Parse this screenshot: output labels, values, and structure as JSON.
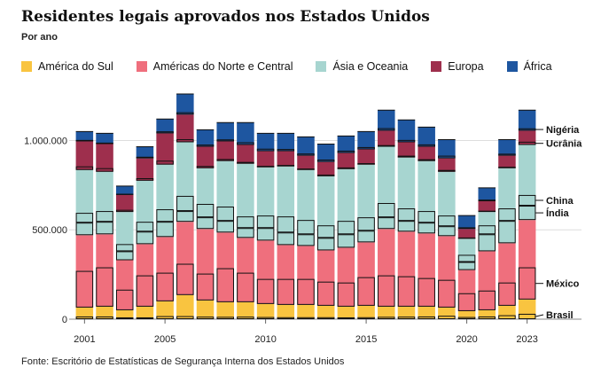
{
  "title": "Residentes legais aprovados nos Estados Unidos",
  "subtitle": "Por ano",
  "source": "Fonte: Escritório de Estatísticas de Segurança Interna dos Estados Unidos",
  "chart_data": {
    "type": "bar",
    "stacked": true,
    "title": "Residentes legais aprovados nos Estados Unidos",
    "subtitle": "Por ano",
    "ylim": [
      0,
      1300000
    ],
    "yticks": [
      0,
      500000,
      1000000
    ],
    "ytick_labels": [
      "0",
      "500.000",
      "1.000.000"
    ],
    "categories": [
      "2001",
      "2002",
      "2003",
      "2004",
      "2005",
      "2006",
      "2007",
      "2008",
      "2009",
      "2010",
      "2011",
      "2012",
      "2013",
      "2014",
      "2015",
      "2016",
      "2017",
      "2018",
      "2019",
      "2020",
      "2021",
      "2022",
      "2023"
    ],
    "xtick_labels": [
      "2001",
      "2005",
      "2010",
      "2015",
      "2020",
      "2023"
    ],
    "series": [
      {
        "name": "América do Sul",
        "color": "#f9c440",
        "values": [
          65000,
          70000,
          50000,
          70000,
          100000,
          135000,
          105000,
          95000,
          95000,
          85000,
          80000,
          80000,
          75000,
          70000,
          75000,
          70000,
          70000,
          70000,
          65000,
          45000,
          50000,
          75000,
          110000
        ]
      },
      {
        "name": "Américas do Norte e Central",
        "color": "#ef6f7d",
        "values": [
          405000,
          405000,
          280000,
          350000,
          360000,
          410000,
          400000,
          390000,
          360000,
          355000,
          335000,
          330000,
          310000,
          330000,
          355000,
          435000,
          420000,
          410000,
          400000,
          230000,
          330000,
          350000,
          445000
        ]
      },
      {
        "name": "Ásia e Oceania",
        "color": "#a7d5d0",
        "values": [
          365000,
          350000,
          270000,
          355000,
          405000,
          445000,
          340000,
          400000,
          415000,
          410000,
          440000,
          425000,
          415000,
          440000,
          435000,
          460000,
          415000,
          405000,
          360000,
          175000,
          220000,
          420000,
          420000
        ]
      },
      {
        "name": "Europa",
        "color": "#9e2f4d",
        "values": [
          160000,
          155000,
          95000,
          125000,
          175000,
          155000,
          120000,
          110000,
          105000,
          90000,
          85000,
          80000,
          80000,
          90000,
          85000,
          90000,
          85000,
          80000,
          75000,
          55000,
          60000,
          70000,
          80000
        ]
      },
      {
        "name": "África",
        "color": "#1e56a0",
        "values": [
          55000,
          60000,
          50000,
          65000,
          80000,
          115000,
          95000,
          105000,
          125000,
          100000,
          100000,
          105000,
          100000,
          95000,
          100000,
          115000,
          125000,
          110000,
          105000,
          75000,
          75000,
          90000,
          115000
        ]
      }
    ],
    "countries": [
      {
        "name": "Brasil",
        "series": "América do Sul",
        "values": [
          15000,
          15000,
          10000,
          10000,
          17000,
          17000,
          14000,
          13000,
          14000,
          12000,
          11000,
          11000,
          11000,
          10000,
          11000,
          13000,
          14000,
          15000,
          19000,
          12000,
          15000,
          22000,
          30000
        ]
      },
      {
        "name": "México",
        "series": "Américas do Norte e Central",
        "values": [
          205000,
          220000,
          115000,
          175000,
          160000,
          175000,
          150000,
          190000,
          165000,
          140000,
          145000,
          145000,
          135000,
          135000,
          160000,
          175000,
          170000,
          160000,
          155000,
          100000,
          110000,
          130000,
          180000
        ]
      },
      {
        "name": "Índia",
        "series": "Ásia e Oceania",
        "values": [
          70000,
          70000,
          50000,
          70000,
          85000,
          60000,
          65000,
          65000,
          55000,
          70000,
          70000,
          65000,
          70000,
          75000,
          65000,
          65000,
          60000,
          60000,
          55000,
          45000,
          95000,
          125000,
          80000
        ]
      },
      {
        "name": "China",
        "series": "Ásia e Oceania",
        "values": [
          55000,
          60000,
          40000,
          55000,
          70000,
          85000,
          75000,
          80000,
          65000,
          70000,
          90000,
          80000,
          70000,
          75000,
          75000,
          80000,
          70000,
          65000,
          60000,
          40000,
          50000,
          70000,
          60000
        ]
      },
      {
        "name": "Ucrânia",
        "series": "Europa",
        "values": [
          20000,
          20000,
          12000,
          14000,
          22000,
          17000,
          12000,
          11000,
          10000,
          8000,
          8000,
          8000,
          9000,
          9000,
          8000,
          9000,
          10000,
          10000,
          10000,
          7000,
          7000,
          8000,
          18000
        ]
      },
      {
        "name": "Nigéria",
        "series": "África",
        "values": [
          8000,
          8000,
          7000,
          9000,
          11000,
          13000,
          12000,
          11000,
          15000,
          14000,
          12000,
          12000,
          13000,
          13000,
          13000,
          14000,
          13000,
          13000,
          15000,
          9000,
          9000,
          11000,
          13000
        ]
      }
    ]
  }
}
